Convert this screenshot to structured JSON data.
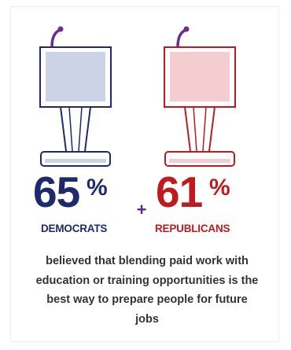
{
  "colors": {
    "democrat": "#1e2a6b",
    "democrat_fill": "#ccd3e6",
    "republican": "#c01920",
    "republican_fill": "#f4cdd0",
    "microphone": "#6b2d8f",
    "plus": "#5a2a82",
    "text": "#333333"
  },
  "democrats": {
    "percent": "65",
    "percent_sign": "%",
    "label": "DEMOCRATS",
    "icon": "podium-icon"
  },
  "plus": "+",
  "republicans": {
    "percent": "61",
    "percent_sign": "%",
    "label": "REPUBLICANS",
    "icon": "podium-icon"
  },
  "summary": "believed that blending paid work with education or training opportunities is the best way to prepare people for future jobs"
}
